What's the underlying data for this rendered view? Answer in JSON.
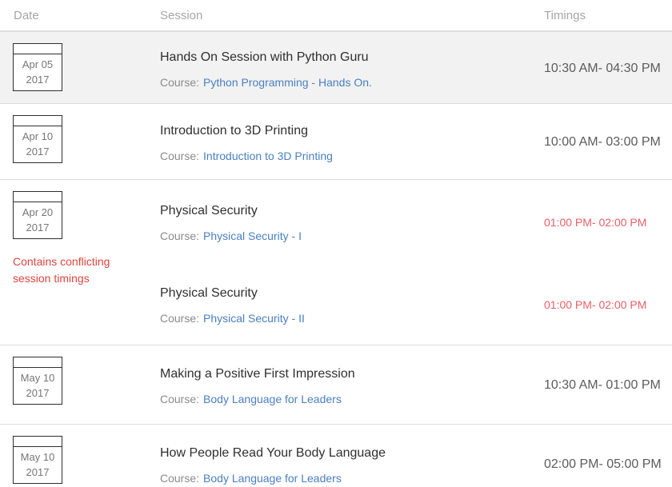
{
  "header": {
    "date": "Date",
    "session": "Session",
    "timings": "Timings"
  },
  "colors": {
    "header_text": "#a6a6a6",
    "row_highlight_bg": "#f2f2f2",
    "row_border": "#dcdcdc",
    "session_title": "#2f2f2f",
    "course_label_text": "#8a8a8a",
    "course_link_blue": "#4a7fc1",
    "timing_text": "#5c5c5c",
    "conflict_note_red": "#e0443f",
    "conflict_timing_red": "#ed5e67",
    "date_box_border": "#2e2e2e",
    "date_text": "#767676"
  },
  "groups": [
    {
      "date": {
        "month_day": "Apr 05",
        "year": "2017"
      },
      "note": null,
      "highlighted": true,
      "sessions": [
        {
          "title": "Hands On Session with Python Guru",
          "course_label": "Course:",
          "course_link": "Python Programming - Hands On.",
          "timing": "10:30 AM- 04:30 PM",
          "conflict": false
        }
      ]
    },
    {
      "date": {
        "month_day": "Apr 10",
        "year": "2017"
      },
      "note": null,
      "highlighted": false,
      "sessions": [
        {
          "title": "Introduction to 3D Printing",
          "course_label": "Course:",
          "course_link": "Introduction to 3D Printing",
          "timing": "10:00 AM- 03:00 PM",
          "conflict": false
        }
      ]
    },
    {
      "date": {
        "month_day": "Apr 20",
        "year": "2017"
      },
      "note": "Contains conflicting session timings",
      "highlighted": false,
      "sessions": [
        {
          "title": "Physical Security",
          "course_label": "Course:",
          "course_link": "Physical Security - I",
          "timing": "01:00 PM- 02:00 PM",
          "conflict": true
        },
        {
          "title": "Physical Security",
          "course_label": "Course:",
          "course_link": "Physical Security - II",
          "timing": "01:00 PM- 02:00 PM",
          "conflict": true
        }
      ]
    },
    {
      "date": {
        "month_day": "May 10",
        "year": "2017"
      },
      "note": null,
      "highlighted": false,
      "sessions": [
        {
          "title": "Making a Positive First Impression",
          "course_label": "Course:",
          "course_link": "Body Language for Leaders",
          "timing": "10:30 AM- 01:00 PM",
          "conflict": false
        }
      ]
    },
    {
      "date": {
        "month_day": "May 10",
        "year": "2017"
      },
      "note": null,
      "highlighted": false,
      "sessions": [
        {
          "title": "How People Read Your Body Language",
          "course_label": "Course:",
          "course_link": "Body Language for Leaders",
          "timing": "02:00 PM- 05:00 PM",
          "conflict": false
        }
      ]
    }
  ]
}
